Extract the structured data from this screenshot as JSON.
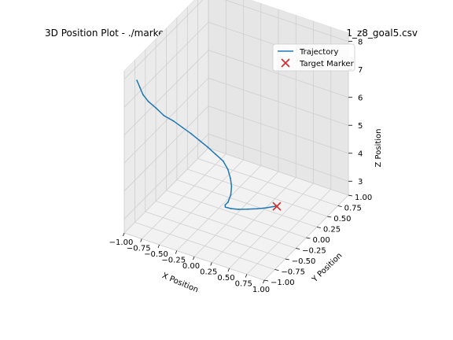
{
  "chart_data": {
    "type": "line",
    "projection": "3d",
    "title": "3D Position Plot - ./marker/position_results/result_marker_x-1_y-1_z8_goal5.csv",
    "xlabel": "X Position",
    "ylabel": "Y Position",
    "zlabel": "Z Position",
    "xlim": [
      -1.0,
      1.0
    ],
    "ylim": [
      -1.0,
      1.0
    ],
    "zlim": [
      2.5,
      8.3
    ],
    "xticks": [
      "−1.00",
      "−0.75",
      "−0.50",
      "−0.25",
      "0.00",
      "0.25",
      "0.50",
      "0.75",
      "1.00"
    ],
    "yticks": [
      "−1.00",
      "−0.75",
      "−0.50",
      "−0.25",
      "0.00",
      "0.25",
      "0.50",
      "0.75",
      "1.00"
    ],
    "zticks": [
      "3",
      "4",
      "5",
      "6",
      "7",
      "8"
    ],
    "grid": true,
    "legend": {
      "position": "top-right",
      "entries": [
        "Trajectory",
        "Target Marker"
      ]
    },
    "series": [
      {
        "name": "Trajectory",
        "kind": "line",
        "color": "#1f77b4",
        "x": [
          -1.0,
          -0.98,
          -0.96,
          -0.92,
          -0.86,
          -0.78,
          -0.68,
          -0.58,
          -0.48,
          -0.38,
          -0.28,
          -0.18,
          -0.08,
          0.0,
          0.06,
          0.1,
          0.12,
          0.11,
          0.08,
          0.06,
          0.09,
          0.15,
          0.23,
          0.32,
          0.4,
          0.46,
          0.5
        ],
        "y": [
          -0.7,
          -0.66,
          -0.62,
          -0.56,
          -0.48,
          -0.42,
          -0.36,
          -0.32,
          -0.28,
          -0.25,
          -0.22,
          -0.2,
          -0.18,
          -0.2,
          -0.24,
          -0.28,
          -0.33,
          -0.38,
          -0.4,
          -0.36,
          -0.28,
          -0.2,
          -0.12,
          -0.04,
          0.04,
          0.1,
          0.14
        ],
        "z": [
          7.5,
          7.2,
          6.9,
          6.6,
          6.3,
          6.0,
          5.8,
          5.6,
          5.4,
          5.2,
          5.0,
          4.8,
          4.6,
          4.4,
          4.2,
          4.0,
          3.8,
          3.6,
          3.5,
          3.35,
          3.2,
          3.1,
          3.05,
          3.02,
          3.0,
          3.0,
          3.0
        ]
      },
      {
        "name": "Target Marker",
        "kind": "scatter",
        "marker": "x",
        "color": "#d62728",
        "x": [
          0.5
        ],
        "y": [
          0.13
        ],
        "z": [
          3.0
        ]
      }
    ]
  }
}
